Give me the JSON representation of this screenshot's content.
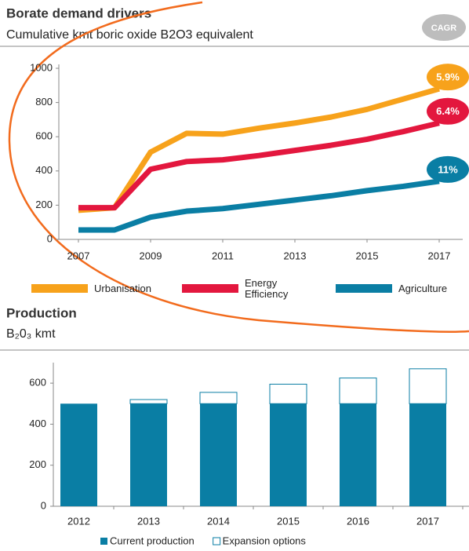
{
  "chart_data": [
    {
      "type": "line",
      "title": "Borate demand drivers",
      "subtitle": "Cumulative kmt boric oxide B2O3 equivalent",
      "badge": "CAGR",
      "x": [
        2007,
        2008,
        2009,
        2010,
        2011,
        2012,
        2013,
        2014,
        2015,
        2016,
        2017
      ],
      "xlim": [
        2007,
        2017
      ],
      "xticks": [
        2007,
        2009,
        2011,
        2013,
        2015,
        2017
      ],
      "ylim": [
        0,
        1000
      ],
      "yticks": [
        0,
        200,
        400,
        600,
        800,
        1000
      ],
      "series": [
        {
          "name": "Urbanisation",
          "color": "#f7a21b",
          "cagr": "5.9%",
          "values": [
            170,
            185,
            510,
            620,
            615,
            650,
            680,
            715,
            760,
            820,
            880
          ]
        },
        {
          "name": "Energy Efficiency",
          "color": "#e3173e",
          "cagr": "6.4%",
          "values": [
            185,
            185,
            410,
            455,
            465,
            490,
            520,
            550,
            585,
            630,
            680
          ]
        },
        {
          "name": "Agriculture",
          "color": "#0a7ea4",
          "cagr": "11%",
          "values": [
            55,
            55,
            130,
            165,
            180,
            205,
            230,
            255,
            285,
            310,
            340
          ]
        }
      ]
    },
    {
      "type": "stacked_bar",
      "title": "Production",
      "subtitle": "B₂0₃ kmt",
      "categories": [
        "2012",
        "2013",
        "2014",
        "2015",
        "2016",
        "2017"
      ],
      "ylim": [
        0,
        700
      ],
      "yticks": [
        0,
        200,
        400,
        600
      ],
      "series": [
        {
          "name": "Current production",
          "color": "#0a7ea4",
          "values": [
            500,
            500,
            500,
            500,
            500,
            500
          ]
        },
        {
          "name": "Expansion options",
          "color": "#ffffff",
          "values": [
            0,
            20,
            55,
            95,
            125,
            170
          ]
        }
      ]
    }
  ]
}
